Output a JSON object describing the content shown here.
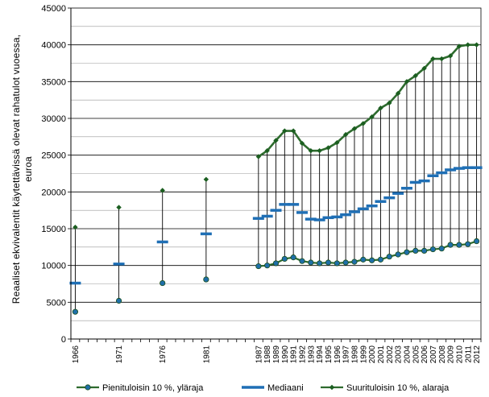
{
  "chart_data": {
    "type": "line",
    "title": "",
    "xlabel": "",
    "ylabel_lines": [
      "Reaaliset ekvivalentit käytettävissä olevat rahatulot vuoessa,",
      "euroa"
    ],
    "ylim": [
      0,
      45000
    ],
    "y_ticks": [
      0,
      5000,
      10000,
      15000,
      20000,
      25000,
      30000,
      35000,
      40000,
      45000
    ],
    "y_tick_labels": [
      "0",
      "5000",
      "10000",
      "15000",
      "20000",
      "25000",
      "30000",
      "35000",
      "40000",
      "45000"
    ],
    "grid": "horizontal, every 2500",
    "legend_position": "bottom",
    "categories": [
      "1966",
      "",
      "",
      "",
      "",
      "1971",
      "",
      "",
      "",
      "",
      "1976",
      "",
      "",
      "",
      "",
      "1981",
      "",
      "",
      "",
      "",
      "",
      "1987",
      "1988",
      "1989",
      "1990",
      "1991",
      "1992",
      "1993",
      "1994",
      "1995",
      "1996",
      "1997",
      "1998",
      "1999",
      "2000",
      "2001",
      "2002",
      "2003",
      "2004",
      "2005",
      "2006",
      "2007",
      "2008",
      "2009",
      "2010",
      "2011",
      "2012"
    ],
    "series": [
      {
        "name": "Pienituloisin 10 %, yläraja",
        "color": "#2E6B2E",
        "marker_color": "#1F6FA8",
        "values": [
          3700,
          null,
          null,
          null,
          null,
          5200,
          null,
          null,
          null,
          null,
          7600,
          null,
          null,
          null,
          null,
          8100,
          null,
          null,
          null,
          null,
          null,
          9900,
          10000,
          10300,
          10900,
          11100,
          10600,
          10400,
          10300,
          10400,
          10300,
          10400,
          10500,
          10800,
          10700,
          10800,
          11200,
          11500,
          11800,
          12000,
          12000,
          12200,
          12300,
          12800,
          12800,
          12900,
          13300
        ]
      },
      {
        "name": "Mediaani",
        "color": "#1F6FB5",
        "values": [
          7600,
          null,
          null,
          null,
          null,
          10200,
          null,
          null,
          null,
          null,
          13200,
          null,
          null,
          null,
          null,
          14300,
          null,
          null,
          null,
          null,
          null,
          16400,
          16700,
          17500,
          18300,
          18300,
          17200,
          16300,
          16200,
          16500,
          16600,
          16900,
          17300,
          17700,
          18100,
          18700,
          19200,
          19800,
          20500,
          21300,
          21500,
          22200,
          22600,
          23000,
          23200,
          23300,
          23300
        ]
      },
      {
        "name": "Suurituloisin 10 %, alaraja",
        "color": "#2E6B2E",
        "marker_color": "#1B5E20",
        "values": [
          15200,
          null,
          null,
          null,
          null,
          17900,
          null,
          null,
          null,
          null,
          20200,
          null,
          null,
          null,
          null,
          21700,
          null,
          null,
          null,
          null,
          null,
          24800,
          25600,
          27000,
          28300,
          28300,
          26600,
          25600,
          25600,
          26000,
          26700,
          27800,
          28600,
          29300,
          30200,
          31400,
          32100,
          33400,
          35000,
          35800,
          36800,
          38100,
          38100,
          38500,
          39800,
          40000,
          40000
        ]
      }
    ]
  }
}
